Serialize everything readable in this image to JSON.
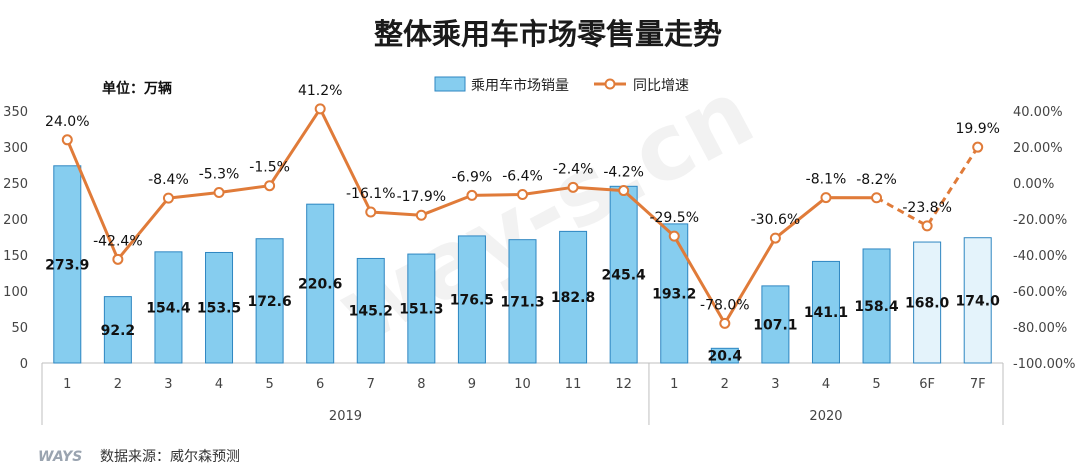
{
  "chart_data": {
    "type": "bar+line",
    "title": "整体乘用车市场零售量走势",
    "unit_label": "单位：万辆",
    "categories": [
      "1",
      "2",
      "3",
      "4",
      "5",
      "6",
      "7",
      "8",
      "9",
      "10",
      "11",
      "12",
      "1",
      "2",
      "3",
      "4",
      "5",
      "6F",
      "7F"
    ],
    "groups": [
      {
        "name": "2019",
        "from": 0,
        "to": 11
      },
      {
        "name": "2020",
        "from": 12,
        "to": 18
      }
    ],
    "series": [
      {
        "name": "乘用车市场销量",
        "type": "bar",
        "axis": "left",
        "values": [
          273.9,
          92.2,
          154.4,
          153.5,
          172.6,
          220.6,
          145.2,
          151.3,
          176.5,
          171.3,
          182.8,
          245.4,
          193.2,
          20.4,
          107.1,
          141.1,
          158.4,
          168.0,
          174.0
        ],
        "labels": [
          "273.9",
          "92.2",
          "154.4",
          "153.5",
          "172.6",
          "220.6",
          "145.2",
          "151.3",
          "176.5",
          "171.3",
          "182.8",
          "245.4",
          "193.2",
          "20.4",
          "107.1",
          "141.1",
          "158.4",
          "168.0",
          "174.0"
        ],
        "forecast_from_index": 17,
        "color": "#86CDEF",
        "forecast_color": "#E4F3FB",
        "border": "#2E86C1"
      },
      {
        "name": "同比增速",
        "type": "line",
        "axis": "right",
        "values": [
          24.0,
          -42.4,
          -8.4,
          -5.3,
          -1.5,
          41.2,
          -16.1,
          -17.9,
          -6.9,
          -6.4,
          -2.4,
          -4.2,
          -29.5,
          -78.0,
          -30.6,
          -8.1,
          -8.2,
          -23.8,
          19.9
        ],
        "labels": [
          "24.0%",
          "-42.4%",
          "-8.4%",
          "-5.3%",
          "-1.5%",
          "41.2%",
          "-16.1%",
          "-17.9%",
          "-6.9%",
          "-6.4%",
          "-2.4%",
          "-4.2%",
          "-29.5%",
          "-78.0%",
          "-30.6%",
          "-8.1%",
          "-8.2%",
          "-23.8%",
          "19.9%"
        ],
        "dashed_from_index": 16,
        "color": "#E07B39"
      }
    ],
    "y_left": {
      "min": 0,
      "max": 350,
      "ticks": [
        "0",
        "50",
        "100",
        "150",
        "200",
        "250",
        "300",
        "350"
      ]
    },
    "y_right": {
      "min": -100,
      "max": 40,
      "ticks": [
        "-100.00%",
        "-80.00%",
        "-60.00%",
        "-40.00%",
        "-20.00%",
        "0.00%",
        "20.00%",
        "40.00%"
      ]
    },
    "legend": {
      "position": "top-center"
    }
  },
  "footer": {
    "logo_text": "WAYS",
    "source_text": "数据来源：威尔森预测"
  },
  "watermark": "way-s.cn"
}
